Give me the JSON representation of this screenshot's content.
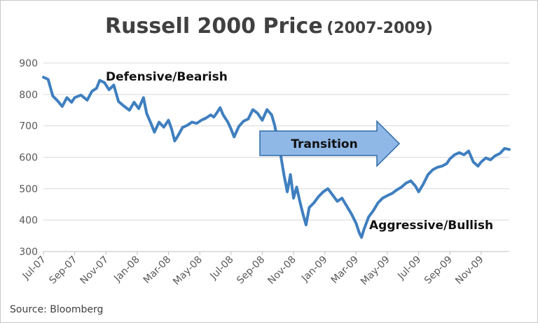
{
  "title_main": "Russell 2000 Price",
  "title_sub": "(2007-2009)",
  "source": "Source: Bloomberg",
  "annotations": {
    "top": "Defensive/Bearish",
    "middle": "Transition",
    "bottom": "Aggressive/Bullish"
  },
  "colors": {
    "line": "#3f7fbf",
    "arrow_fill": "#8fb8e6",
    "arrow_stroke": "#2e6aa6",
    "grid": "#d9d9d9",
    "text": "#404040"
  },
  "chart_data": {
    "type": "line",
    "title": "Russell 2000 Price (2007-2009)",
    "xlabel": "",
    "ylabel": "",
    "ylim": [
      300,
      900
    ],
    "yticks": [
      900,
      800,
      700,
      600,
      500,
      400,
      300
    ],
    "xticks": [
      "Jul-07",
      "Sep-07",
      "Nov-07",
      "Jan-08",
      "Mar-08",
      "May-08",
      "Jul-08",
      "Sep-08",
      "Nov-08",
      "Jan-09",
      "Mar-09",
      "May-09",
      "Jul-09",
      "Sep-09",
      "Nov-09"
    ],
    "grid": true,
    "legend": "none",
    "x_range_months": [
      0,
      29.8
    ],
    "series": [
      {
        "name": "",
        "points": [
          {
            "x": "Jul-07",
            "month": 0.0,
            "y": 855
          },
          {
            "x": "Jul-07",
            "month": 0.3,
            "y": 848
          },
          {
            "x": "Aug-07",
            "month": 0.6,
            "y": 795
          },
          {
            "x": "Aug-07",
            "month": 0.9,
            "y": 780
          },
          {
            "x": "Aug-07",
            "month": 1.2,
            "y": 762
          },
          {
            "x": "Aug-07",
            "month": 1.5,
            "y": 790
          },
          {
            "x": "Aug-07",
            "month": 1.8,
            "y": 775
          },
          {
            "x": "Sep-07",
            "month": 2.0,
            "y": 790
          },
          {
            "x": "Sep-07",
            "month": 2.4,
            "y": 798
          },
          {
            "x": "Sep-07",
            "month": 2.8,
            "y": 782
          },
          {
            "x": "Oct-07",
            "month": 3.1,
            "y": 810
          },
          {
            "x": "Oct-07",
            "month": 3.4,
            "y": 820
          },
          {
            "x": "Oct-07",
            "month": 3.6,
            "y": 845
          },
          {
            "x": "Oct-07",
            "month": 3.9,
            "y": 838
          },
          {
            "x": "Nov-07",
            "month": 4.2,
            "y": 815
          },
          {
            "x": "Nov-07",
            "month": 4.5,
            "y": 830
          },
          {
            "x": "Nov-07",
            "month": 4.8,
            "y": 778
          },
          {
            "x": "Dec-07",
            "month": 5.1,
            "y": 765
          },
          {
            "x": "Dec-07",
            "month": 5.5,
            "y": 750
          },
          {
            "x": "Dec-07",
            "month": 5.8,
            "y": 775
          },
          {
            "x": "Jan-08",
            "month": 6.1,
            "y": 755
          },
          {
            "x": "Jan-08",
            "month": 6.4,
            "y": 790
          },
          {
            "x": "Jan-08",
            "month": 6.6,
            "y": 740
          },
          {
            "x": "Jan-08",
            "month": 6.9,
            "y": 705
          },
          {
            "x": "Jan-08",
            "month": 7.1,
            "y": 680
          },
          {
            "x": "Feb-08",
            "month": 7.4,
            "y": 712
          },
          {
            "x": "Feb-08",
            "month": 7.7,
            "y": 696
          },
          {
            "x": "Feb-08",
            "month": 8.0,
            "y": 718
          },
          {
            "x": "Mar-08",
            "month": 8.2,
            "y": 690
          },
          {
            "x": "Mar-08",
            "month": 8.4,
            "y": 652
          },
          {
            "x": "Mar-08",
            "month": 8.6,
            "y": 668
          },
          {
            "x": "Mar-08",
            "month": 8.9,
            "y": 695
          },
          {
            "x": "Apr-08",
            "month": 9.2,
            "y": 702
          },
          {
            "x": "Apr-08",
            "month": 9.5,
            "y": 712
          },
          {
            "x": "Apr-08",
            "month": 9.8,
            "y": 708
          },
          {
            "x": "May-08",
            "month": 10.1,
            "y": 718
          },
          {
            "x": "May-08",
            "month": 10.4,
            "y": 725
          },
          {
            "x": "May-08",
            "month": 10.7,
            "y": 735
          },
          {
            "x": "May-08",
            "month": 10.9,
            "y": 728
          },
          {
            "x": "Jun-08",
            "month": 11.1,
            "y": 742
          },
          {
            "x": "Jun-08",
            "month": 11.3,
            "y": 758
          },
          {
            "x": "Jun-08",
            "month": 11.5,
            "y": 735
          },
          {
            "x": "Jun-08",
            "month": 11.8,
            "y": 712
          },
          {
            "x": "Jul-08",
            "month": 12.0,
            "y": 690
          },
          {
            "x": "Jul-08",
            "month": 12.2,
            "y": 665
          },
          {
            "x": "Jul-08",
            "month": 12.5,
            "y": 698
          },
          {
            "x": "Jul-08",
            "month": 12.8,
            "y": 715
          },
          {
            "x": "Aug-08",
            "month": 13.1,
            "y": 722
          },
          {
            "x": "Aug-08",
            "month": 13.4,
            "y": 752
          },
          {
            "x": "Aug-08",
            "month": 13.7,
            "y": 740
          },
          {
            "x": "Sep-08",
            "month": 14.0,
            "y": 718
          },
          {
            "x": "Sep-08",
            "month": 14.3,
            "y": 752
          },
          {
            "x": "Sep-08",
            "month": 14.6,
            "y": 735
          },
          {
            "x": "Sep-08",
            "month": 14.8,
            "y": 700
          },
          {
            "x": "Oct-08",
            "month": 15.0,
            "y": 650
          },
          {
            "x": "Oct-08",
            "month": 15.2,
            "y": 600
          },
          {
            "x": "Oct-08",
            "month": 15.4,
            "y": 540
          },
          {
            "x": "Oct-08",
            "month": 15.6,
            "y": 490
          },
          {
            "x": "Oct-08",
            "month": 15.8,
            "y": 545
          },
          {
            "x": "Oct-08",
            "month": 16.0,
            "y": 470
          },
          {
            "x": "Nov-08",
            "month": 16.2,
            "y": 505
          },
          {
            "x": "Nov-08",
            "month": 16.4,
            "y": 460
          },
          {
            "x": "Nov-08",
            "month": 16.6,
            "y": 420
          },
          {
            "x": "Nov-08",
            "month": 16.8,
            "y": 385
          },
          {
            "x": "Dec-08",
            "month": 17.0,
            "y": 440
          },
          {
            "x": "Dec-08",
            "month": 17.3,
            "y": 455
          },
          {
            "x": "Dec-08",
            "month": 17.6,
            "y": 475
          },
          {
            "x": "Dec-08",
            "month": 17.9,
            "y": 490
          },
          {
            "x": "Jan-09",
            "month": 18.2,
            "y": 500
          },
          {
            "x": "Jan-09",
            "month": 18.5,
            "y": 480
          },
          {
            "x": "Jan-09",
            "month": 18.8,
            "y": 460
          },
          {
            "x": "Feb-09",
            "month": 19.1,
            "y": 470
          },
          {
            "x": "Feb-09",
            "month": 19.4,
            "y": 445
          },
          {
            "x": "Feb-09",
            "month": 19.7,
            "y": 420
          },
          {
            "x": "Mar-09",
            "month": 20.0,
            "y": 390
          },
          {
            "x": "Mar-09",
            "month": 20.2,
            "y": 360
          },
          {
            "x": "Mar-09",
            "month": 20.35,
            "y": 345
          },
          {
            "x": "Mar-09",
            "month": 20.5,
            "y": 370
          },
          {
            "x": "Mar-09",
            "month": 20.8,
            "y": 410
          },
          {
            "x": "Apr-09",
            "month": 21.1,
            "y": 430
          },
          {
            "x": "Apr-09",
            "month": 21.4,
            "y": 455
          },
          {
            "x": "Apr-09",
            "month": 21.7,
            "y": 470
          },
          {
            "x": "May-09",
            "month": 22.0,
            "y": 478
          },
          {
            "x": "May-09",
            "month": 22.3,
            "y": 485
          },
          {
            "x": "May-09",
            "month": 22.6,
            "y": 496
          },
          {
            "x": "May-09",
            "month": 22.9,
            "y": 505
          },
          {
            "x": "Jun-09",
            "month": 23.2,
            "y": 518
          },
          {
            "x": "Jun-09",
            "month": 23.5,
            "y": 525
          },
          {
            "x": "Jun-09",
            "month": 23.8,
            "y": 508
          },
          {
            "x": "Jul-09",
            "month": 24.0,
            "y": 490
          },
          {
            "x": "Jul-09",
            "month": 24.3,
            "y": 515
          },
          {
            "x": "Jul-09",
            "month": 24.6,
            "y": 545
          },
          {
            "x": "Jul-09",
            "month": 24.9,
            "y": 560
          },
          {
            "x": "Aug-09",
            "month": 25.2,
            "y": 568
          },
          {
            "x": "Aug-09",
            "month": 25.5,
            "y": 572
          },
          {
            "x": "Aug-09",
            "month": 25.8,
            "y": 580
          },
          {
            "x": "Sep-09",
            "month": 26.0,
            "y": 595
          },
          {
            "x": "Sep-09",
            "month": 26.3,
            "y": 608
          },
          {
            "x": "Sep-09",
            "month": 26.6,
            "y": 615
          },
          {
            "x": "Oct-09",
            "month": 26.9,
            "y": 608
          },
          {
            "x": "Oct-09",
            "month": 27.2,
            "y": 620
          },
          {
            "x": "Oct-09",
            "month": 27.5,
            "y": 585
          },
          {
            "x": "Oct-09",
            "month": 27.8,
            "y": 572
          },
          {
            "x": "Nov-09",
            "month": 28.0,
            "y": 585
          },
          {
            "x": "Nov-09",
            "month": 28.3,
            "y": 598
          },
          {
            "x": "Nov-09",
            "month": 28.6,
            "y": 592
          },
          {
            "x": "Nov-09",
            "month": 28.9,
            "y": 605
          },
          {
            "x": "Dec-09",
            "month": 29.2,
            "y": 612
          },
          {
            "x": "Dec-09",
            "month": 29.5,
            "y": 628
          },
          {
            "x": "Dec-09",
            "month": 29.8,
            "y": 625
          }
        ]
      }
    ]
  }
}
